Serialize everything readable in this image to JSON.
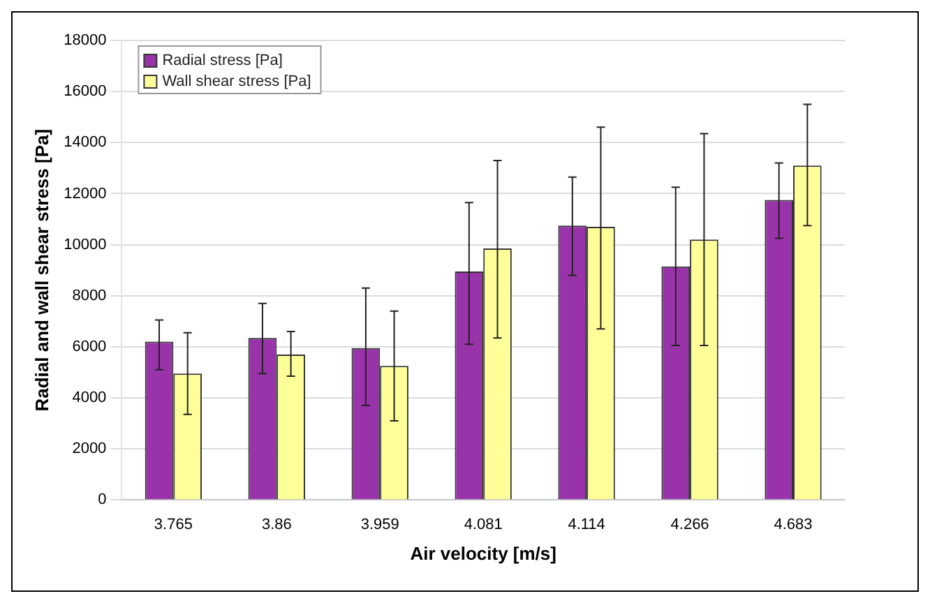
{
  "chart_data": {
    "type": "bar",
    "xlabel": "Air velocity [m/s]",
    "ylabel": "Radial and wall shear stress [Pa]",
    "categories": [
      "3.765",
      "3.86",
      "3.959",
      "4.081",
      "4.114",
      "4.266",
      "4.683"
    ],
    "series": [
      {
        "name": "Radial stress [Pa]",
        "color": "#9933aa",
        "values": [
          6200,
          6350,
          5950,
          8950,
          10750,
          9150,
          11750
        ],
        "errors": [
          [
            5100,
            7050
          ],
          [
            4950,
            7700
          ],
          [
            3700,
            8300
          ],
          [
            6100,
            11650
          ],
          [
            8800,
            12650
          ],
          [
            6050,
            12250
          ],
          [
            10250,
            13200
          ]
        ]
      },
      {
        "name": "Wall shear stress [Pa]",
        "color": "#ffff99",
        "values": [
          4950,
          5700,
          5250,
          9850,
          10700,
          10200,
          13100
        ],
        "errors": [
          [
            3350,
            6550
          ],
          [
            4850,
            6600
          ],
          [
            3100,
            7400
          ],
          [
            6350,
            13300
          ],
          [
            6700,
            14600
          ],
          [
            6050,
            14350
          ],
          [
            10750,
            15500
          ]
        ]
      }
    ],
    "ylim": [
      0,
      18000
    ],
    "yticks": [
      0,
      2000,
      4000,
      6000,
      8000,
      10000,
      12000,
      14000,
      16000,
      18000
    ],
    "grid": "y",
    "legend": "top left"
  }
}
